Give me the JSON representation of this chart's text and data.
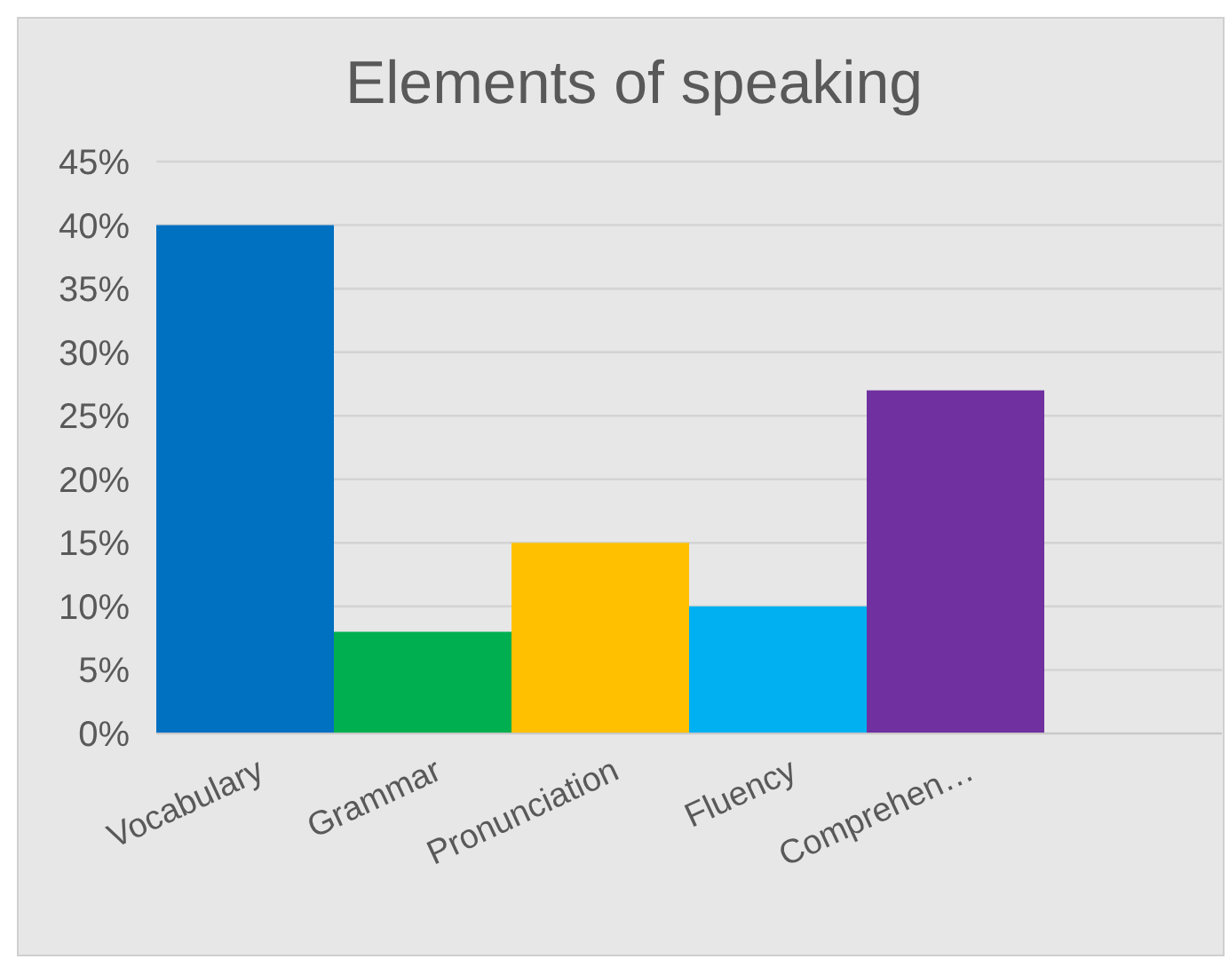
{
  "chart_data": {
    "type": "bar",
    "title": "Elements of speaking",
    "categories": [
      "Vocabulary",
      "Grammar",
      "Pronunciation",
      "Fluency",
      "Comprehen…",
      null
    ],
    "values": [
      40,
      8,
      15,
      10,
      27,
      null
    ],
    "colors": [
      "#0070c0",
      "#00b050",
      "#ffc000",
      "#00b0f0",
      "#7030a0",
      null
    ],
    "ylim": [
      0,
      45
    ],
    "yticks": [
      {
        "value": 0,
        "label": "0%"
      },
      {
        "value": 5,
        "label": "5%"
      },
      {
        "value": 10,
        "label": "10%"
      },
      {
        "value": 15,
        "label": "15%"
      },
      {
        "value": 20,
        "label": "20%"
      },
      {
        "value": 25,
        "label": "25%"
      },
      {
        "value": 30,
        "label": "30%"
      },
      {
        "value": 35,
        "label": "35%"
      },
      {
        "value": 40,
        "label": "40%"
      },
      {
        "value": 45,
        "label": "45%"
      }
    ],
    "grid": "y"
  }
}
